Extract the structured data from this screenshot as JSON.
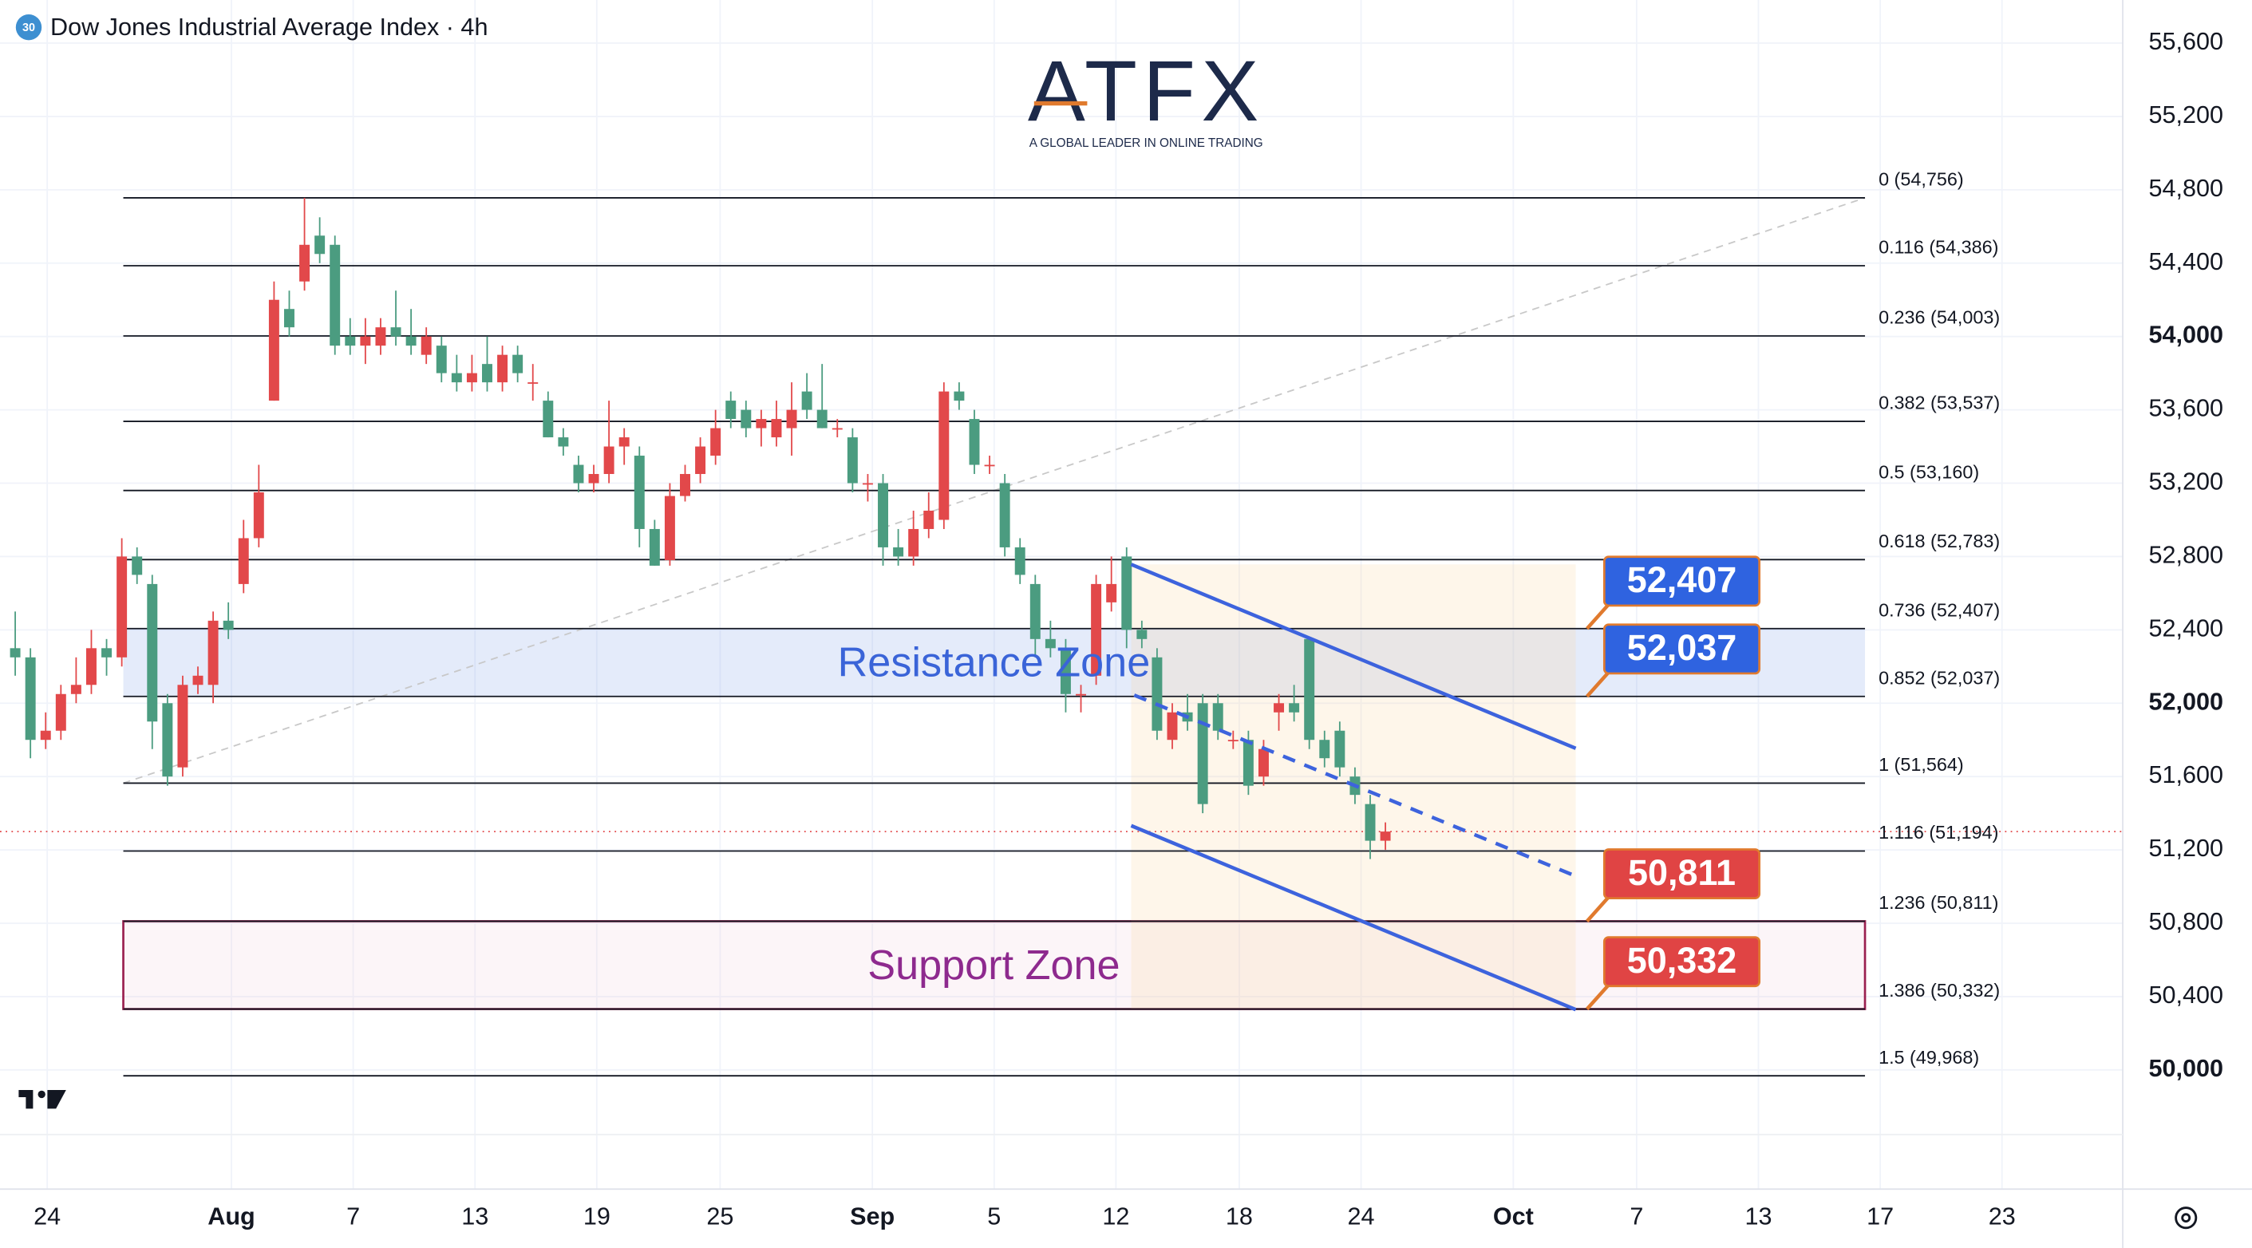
{
  "chart_data": {
    "type": "candlestick",
    "title": "Dow Jones Industrial Average Index · 4h",
    "symbol_badge": "30",
    "brand": "ATFX",
    "brand_tagline": "A GLOBAL LEADER IN ONLINE TRADING",
    "up_color": "#e2484a",
    "down_color": "#4b9c80",
    "grid": true,
    "ylim": [
      49350,
      55835
    ],
    "yticks": [
      {
        "value": 50000,
        "label": "50,000"
      },
      {
        "value": 50400,
        "label": "50,400"
      },
      {
        "value": 50800,
        "label": "50,800"
      },
      {
        "value": 51200,
        "label": "51,200"
      },
      {
        "value": 51600,
        "label": "51,600"
      },
      {
        "value": 52000,
        "label": "52,000"
      },
      {
        "value": 52400,
        "label": "52,400"
      },
      {
        "value": 52800,
        "label": "52,800"
      },
      {
        "value": 53200,
        "label": "53,200"
      },
      {
        "value": 53600,
        "label": "53,600"
      },
      {
        "value": 54000,
        "label": "54,000"
      },
      {
        "value": 54400,
        "label": "54,400"
      },
      {
        "value": 54800,
        "label": "54,800"
      },
      {
        "value": 55200,
        "label": "55,200"
      },
      {
        "value": 55600,
        "label": "55,600"
      }
    ],
    "xlim": [
      0,
      139.43
    ],
    "xticks": [
      {
        "value": 3.1,
        "label": "24"
      },
      {
        "value": 15.2,
        "label": "Aug"
      },
      {
        "value": 23.2,
        "label": "7"
      },
      {
        "value": 31.2,
        "label": "13"
      },
      {
        "value": 39.2,
        "label": "19"
      },
      {
        "value": 47.3,
        "label": "25"
      },
      {
        "value": 57.3,
        "label": "Sep"
      },
      {
        "value": 65.3,
        "label": "5"
      },
      {
        "value": 73.3,
        "label": "12"
      },
      {
        "value": 81.4,
        "label": "18"
      },
      {
        "value": 89.4,
        "label": "24"
      },
      {
        "value": 99.4,
        "label": "Oct"
      },
      {
        "value": 107.5,
        "label": "7"
      },
      {
        "value": 115.5,
        "label": "13"
      },
      {
        "value": 123.5,
        "label": "17"
      },
      {
        "value": 131.5,
        "label": "23"
      }
    ],
    "x": [
      1,
      2,
      3,
      4,
      5,
      6,
      7,
      8,
      9,
      10,
      11,
      12,
      13,
      14,
      15,
      16,
      17,
      18,
      19,
      20,
      21,
      22,
      23,
      24,
      25,
      26,
      27,
      28,
      29,
      30,
      31,
      32,
      33,
      34,
      35,
      36,
      37,
      38,
      39,
      40,
      41,
      42,
      43,
      44,
      45,
      46,
      47,
      48,
      49,
      50,
      51,
      52,
      53,
      54,
      55,
      56,
      57,
      58,
      59,
      60,
      61,
      62,
      63,
      64,
      65,
      66,
      67,
      68,
      69,
      70,
      71,
      72,
      73,
      74,
      75,
      76,
      77,
      78,
      79,
      80,
      81,
      82,
      83,
      84,
      85,
      86,
      87,
      88,
      89,
      90,
      91
    ],
    "open": [
      52300,
      52250,
      51800,
      51850,
      52050,
      52100,
      52300,
      52250,
      52800,
      52650,
      52000,
      51650,
      52100,
      52100,
      52450,
      52650,
      52900,
      53650,
      54150,
      54300,
      54550,
      54500,
      54000,
      53950,
      53950,
      54050,
      54000,
      53900,
      53950,
      53800,
      53750,
      53850,
      53750,
      53900,
      53750,
      53650,
      53450,
      53300,
      53200,
      53250,
      53400,
      53350,
      52950,
      52780,
      53130,
      53250,
      53350,
      53650,
      53600,
      53500,
      53450,
      53500,
      53700,
      53600,
      53500,
      53450,
      53200,
      53200,
      52850,
      52800,
      52950,
      53000,
      53700,
      53550,
      53300,
      53200,
      52850,
      52650,
      52350,
      52300,
      52050,
      52150,
      52550,
      52800,
      52400,
      52250,
      51800,
      51950,
      52000,
      52000,
      51800,
      51800,
      51600,
      51950,
      52000,
      52350,
      51800,
      51850,
      51600,
      51450,
      51250
    ],
    "high": [
      52500,
      52300,
      51950,
      52100,
      52250,
      52400,
      52350,
      52900,
      52850,
      52700,
      52050,
      52150,
      52200,
      52500,
      52550,
      53000,
      53300,
      54300,
      54250,
      54756,
      54650,
      54550,
      54100,
      54100,
      54100,
      54250,
      54150,
      54050,
      54000,
      53900,
      53900,
      54000,
      53950,
      53950,
      53850,
      53700,
      53500,
      53350,
      53300,
      53650,
      53500,
      53400,
      53000,
      53200,
      53300,
      53450,
      53600,
      53700,
      53650,
      53600,
      53650,
      53750,
      53800,
      53850,
      53550,
      53500,
      53250,
      53250,
      52950,
      53050,
      53150,
      53750,
      53750,
      53600,
      53350,
      53250,
      52900,
      52700,
      52450,
      52350,
      52100,
      52700,
      52800,
      52850,
      52450,
      52300,
      52000,
      52050,
      52050,
      52050,
      51850,
      51850,
      51800,
      52050,
      52100,
      52350,
      51850,
      51900,
      51650,
      51500,
      51350
    ],
    "low": [
      52150,
      51700,
      51750,
      51800,
      52000,
      52050,
      52150,
      52200,
      52650,
      51750,
      51550,
      51600,
      52050,
      52000,
      52350,
      52600,
      52850,
      53650,
      54000,
      54250,
      54400,
      53900,
      53900,
      53850,
      53900,
      53950,
      53900,
      53850,
      53750,
      53700,
      53700,
      53700,
      53700,
      53750,
      53650,
      53450,
      53350,
      53150,
      53150,
      53200,
      53300,
      52850,
      52750,
      52750,
      53100,
      53200,
      53300,
      53500,
      53450,
      53400,
      53400,
      53350,
      53550,
      53500,
      53450,
      53150,
      53100,
      52750,
      52750,
      52750,
      52900,
      52950,
      53600,
      53250,
      53250,
      52800,
      52650,
      52250,
      52250,
      51950,
      51950,
      52100,
      52500,
      52300,
      52300,
      51800,
      51750,
      51850,
      51400,
      51800,
      51750,
      51500,
      51550,
      51850,
      51900,
      51750,
      51650,
      51600,
      51450,
      51150,
      51200
    ],
    "close": [
      52250,
      51800,
      51850,
      52050,
      52100,
      52300,
      52250,
      52800,
      52700,
      51900,
      51600,
      52100,
      52150,
      52450,
      52400,
      52900,
      53150,
      54200,
      54050,
      54500,
      54450,
      53950,
      53950,
      54000,
      54050,
      54000,
      53950,
      54000,
      53800,
      53750,
      53800,
      53750,
      53900,
      53800,
      53750,
      53450,
      53400,
      53200,
      53250,
      53400,
      53450,
      52950,
      52750,
      53130,
      53250,
      53400,
      53500,
      53550,
      53500,
      53550,
      53550,
      53600,
      53600,
      53500,
      53500,
      53200,
      53200,
      52850,
      52800,
      52950,
      53050,
      53700,
      53650,
      53300,
      53300,
      52850,
      52700,
      52350,
      52300,
      52050,
      52050,
      52650,
      52650,
      52400,
      52350,
      51850,
      51950,
      51900,
      51450,
      51850,
      51800,
      51550,
      51750,
      52000,
      51950,
      51800,
      51700,
      51650,
      51500,
      51250,
      51300
    ],
    "fib_range": {
      "x": [
        8.1,
        122.5
      ],
      "y": [
        51564,
        54756
      ]
    },
    "fib_levels": {
      "values": [
        54756,
        54386,
        54003,
        53537,
        53160,
        52783,
        52407,
        52037,
        51564,
        51194,
        50811,
        50332,
        49968
      ],
      "labels": [
        "0 (54,756)",
        "0.116 (54,386)",
        "0.236 (54,003)",
        "0.382 (53,537)",
        "0.5 (53,160)",
        "0.618 (52,783)",
        "0.736 (52,407)",
        "0.852 (52,037)",
        "1 (51,564)",
        "1.116 (51,194)",
        "1.236 (50,811)",
        "1.386 (50,332)",
        "1.5 (49,968)"
      ],
      "xlim": [
        8.1,
        122.5
      ]
    },
    "zones": [
      {
        "name": "Resistance Zone",
        "low": 52037,
        "high": 52407,
        "color": "#3a64d8"
      },
      {
        "name": "Support Zone",
        "low": 50332,
        "high": 50811,
        "color": "#8e2a8e"
      }
    ],
    "channel": {
      "color": "#3d63dd",
      "upper": {
        "x": [
          74.3,
          103.5
        ],
        "y": [
          52757,
          51754
        ]
      },
      "middle": {
        "x": [
          74.5,
          103.5
        ],
        "y": [
          52044,
          51057
        ]
      },
      "lower": {
        "x": [
          74.3,
          103.5
        ],
        "y": [
          51332,
          50329
        ]
      }
    },
    "price_tags": {
      "values": [
        52407,
        52037,
        50811,
        50332
      ],
      "value_labels": [
        "52,407",
        "52,037",
        "50,811",
        "50,332"
      ],
      "colors": [
        "#2f63e0",
        "#2f63e0",
        "#e04444",
        "#e04444"
      ]
    }
  }
}
